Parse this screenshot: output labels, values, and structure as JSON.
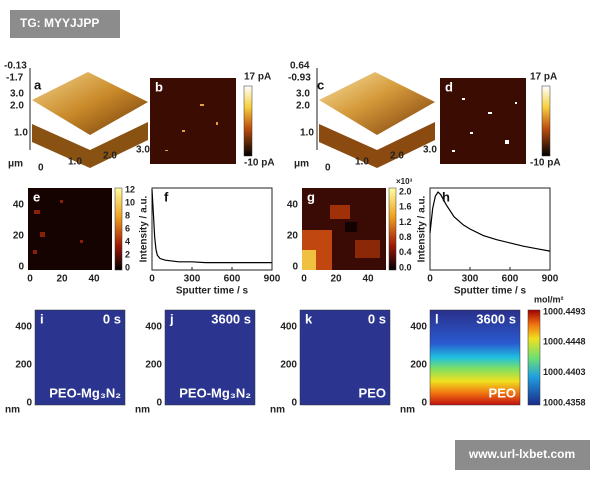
{
  "watermark": "TG: MYYJJPP",
  "footer_url": "www.url-lxbet.com",
  "panels": {
    "a": {
      "label": "a",
      "z_ticks": [
        "-0.13",
        "-1.7"
      ],
      "y_ticks": [
        "3.0",
        "2.0",
        "1.0"
      ],
      "unit": "μm",
      "x_ticks": [
        "0",
        "1.0",
        "2.0",
        "3.0"
      ]
    },
    "b": {
      "label": "b",
      "colorbar": [
        "17 pA",
        "-10 pA"
      ]
    },
    "c": {
      "label": "c",
      "z_ticks": [
        "0.64",
        "-0.93"
      ],
      "y_ticks": [
        "3.0",
        "2.0",
        "1.0"
      ],
      "unit": "μm",
      "x_ticks": [
        "0",
        "1.0",
        "2.0",
        "3.0"
      ]
    },
    "d": {
      "label": "d",
      "colorbar": [
        "17 pA",
        "-10 pA"
      ]
    },
    "e": {
      "label": "e",
      "y_ticks": [
        "40",
        "20",
        "0"
      ],
      "x_ticks": [
        "0",
        "20",
        "40"
      ],
      "colorbar": [
        "12",
        "10",
        "8",
        "6",
        "4",
        "2",
        "0"
      ]
    },
    "g": {
      "label": "g",
      "y_ticks": [
        "40",
        "20",
        "0"
      ],
      "x_ticks": [
        "0",
        "20",
        "40"
      ],
      "colorbar_exponent": "×10³",
      "colorbar": [
        "2.0",
        "1.6",
        "1.2",
        "0.8",
        "0.4",
        "0.0"
      ]
    },
    "i": {
      "label": "i",
      "time": "0 s",
      "sample": "PEO-Mg₃N₂",
      "y_ticks": [
        "400",
        "200",
        "0"
      ],
      "unit": "nm"
    },
    "j": {
      "label": "j",
      "time": "3600 s",
      "sample": "PEO-Mg₃N₂",
      "y_ticks": [
        "400",
        "200",
        "0"
      ],
      "unit": "nm"
    },
    "k": {
      "label": "k",
      "time": "0 s",
      "sample": "PEO",
      "y_ticks": [
        "400",
        "200",
        "0"
      ],
      "unit": "nm"
    },
    "l": {
      "label": "l",
      "time": "3600 s",
      "sample": "PEO",
      "y_ticks": [
        "400",
        "200",
        "0"
      ],
      "unit": "nm",
      "colorbar_unit": "mol/m²",
      "colorbar": [
        "1000.4493",
        "1000.4448",
        "1000.4403",
        "1000.4358"
      ]
    }
  },
  "chart_data": [
    {
      "type": "line",
      "panel_label": "f",
      "y_label": "Intensity / a.u.",
      "x_label": "Sputter time / s",
      "color": "#000000",
      "x": [
        0,
        10,
        20,
        30,
        40,
        60,
        100,
        200,
        300,
        400,
        500,
        600,
        700,
        800,
        900
      ],
      "values": [
        0.98,
        0.7,
        0.4,
        0.25,
        0.18,
        0.14,
        0.12,
        0.1,
        0.1,
        0.09,
        0.09,
        0.09,
        0.09,
        0.09,
        0.09
      ],
      "xlim": [
        0,
        900
      ],
      "xticks": [
        0,
        300,
        600,
        900
      ],
      "ylim": [
        0,
        1
      ]
    },
    {
      "type": "line",
      "panel_label": "h",
      "y_label": "Intensity / a.u.",
      "x_label": "Sputter time / s",
      "color": "#000000",
      "x": [
        0,
        20,
        40,
        60,
        80,
        120,
        180,
        250,
        300,
        400,
        500,
        600,
        700,
        800,
        900
      ],
      "values": [
        0.45,
        0.75,
        0.9,
        0.95,
        0.92,
        0.8,
        0.65,
        0.55,
        0.5,
        0.42,
        0.37,
        0.33,
        0.29,
        0.26,
        0.23
      ],
      "xlim": [
        0,
        900
      ],
      "xticks": [
        0,
        300,
        600,
        900
      ],
      "ylim": [
        0,
        1
      ]
    }
  ]
}
